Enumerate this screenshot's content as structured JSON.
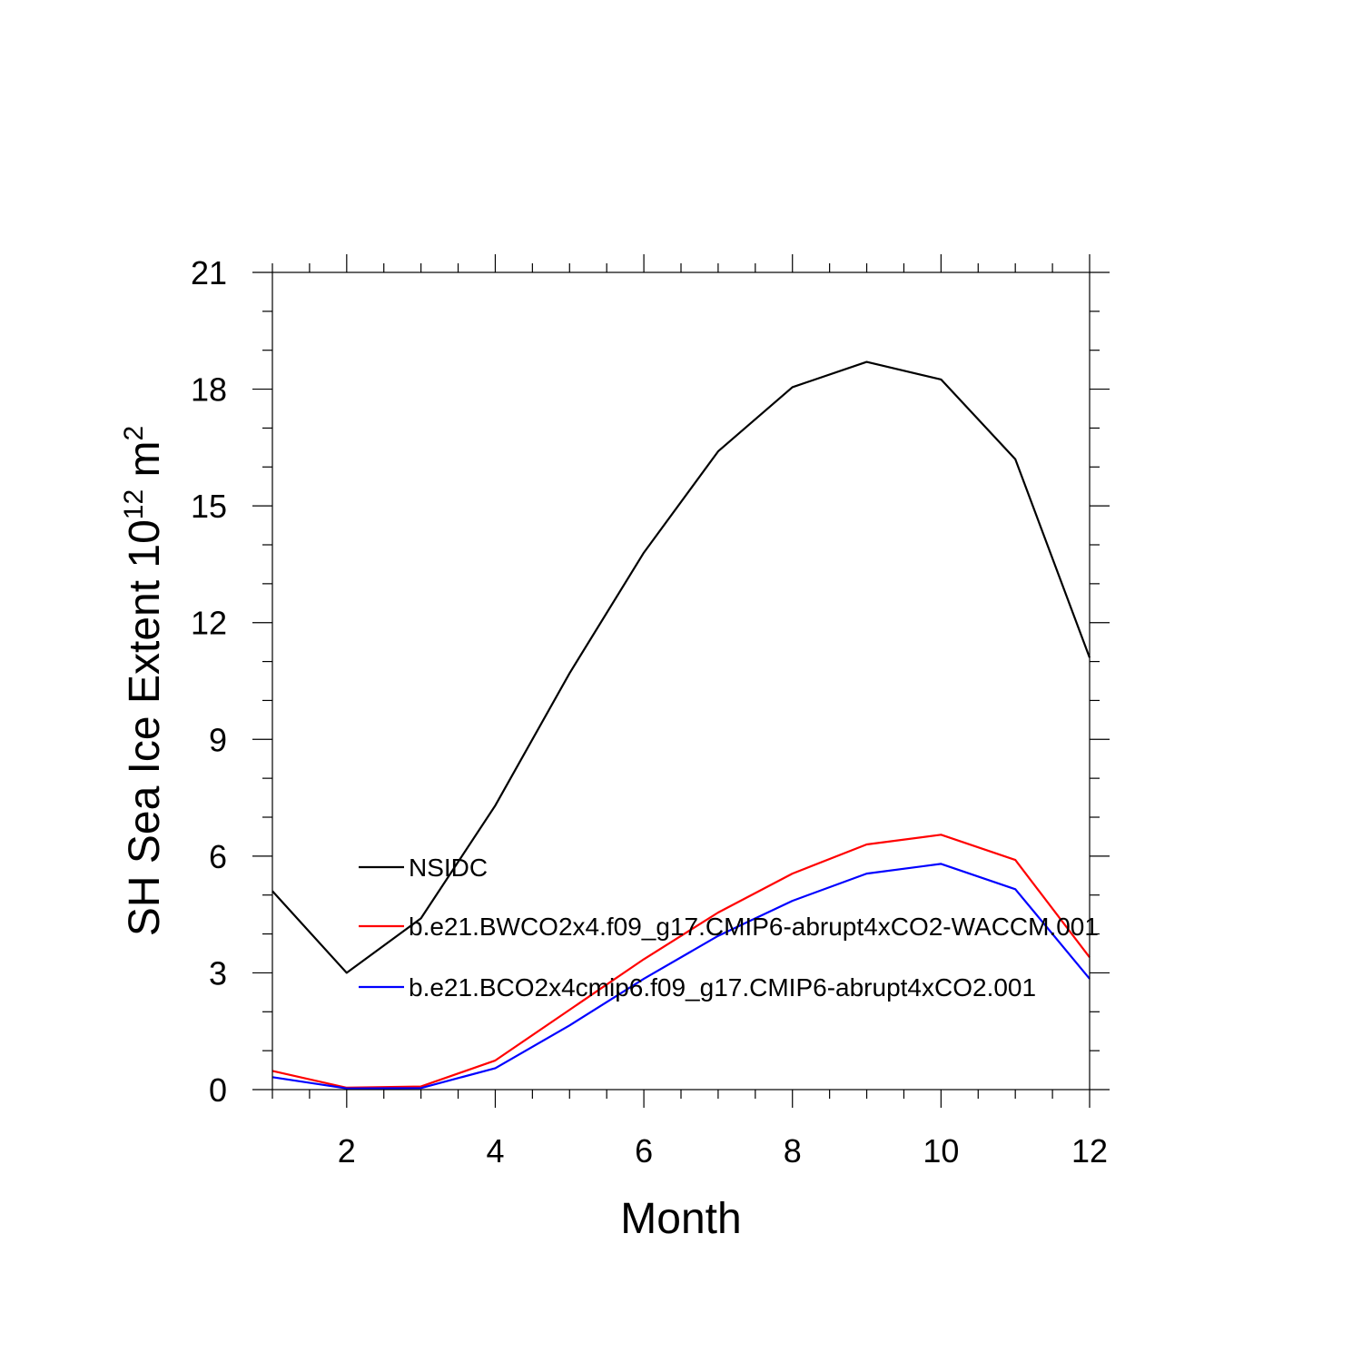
{
  "chart_data": {
    "type": "line",
    "title": "",
    "xlabel": "Month",
    "ylabel": "SH Sea Ice Extent 10",
    "ylabel_exp": "12",
    "ylabel_unit": " m",
    "ylabel_unit_exp": "2",
    "xlim": [
      1,
      12
    ],
    "ylim": [
      0,
      21
    ],
    "x_ticks": [
      2,
      4,
      6,
      8,
      10,
      12
    ],
    "x_tick_labels": [
      "2",
      "4",
      "6",
      "8",
      "10",
      "12"
    ],
    "y_ticks": [
      0,
      3,
      6,
      9,
      12,
      15,
      18,
      21
    ],
    "y_tick_labels": [
      "0",
      "3",
      "6",
      "9",
      "12",
      "15",
      "18",
      "21"
    ],
    "grid": false,
    "legend_position": "center-left",
    "x": [
      1,
      2,
      3,
      4,
      5,
      6,
      7,
      8,
      9,
      10,
      11,
      12
    ],
    "series": [
      {
        "name": "NSIDC",
        "color": "#000000",
        "values": [
          5.1,
          3.0,
          4.4,
          7.3,
          10.7,
          13.8,
          16.4,
          18.05,
          18.7,
          18.25,
          16.2,
          11.1
        ]
      },
      {
        "name": "b.e21.BWCO2x4.f09_g17.CMIP6-abrupt4xCO2-WACCM.001",
        "color": "#ff0000",
        "values": [
          0.48,
          0.05,
          0.08,
          0.75,
          2.05,
          3.35,
          4.55,
          5.55,
          6.3,
          6.55,
          5.9,
          3.4
        ]
      },
      {
        "name": "b.e21.BCO2x4cmip6.f09_g17.CMIP6-abrupt4xCO2.001",
        "color": "#0000ff",
        "values": [
          0.32,
          0.03,
          0.04,
          0.55,
          1.65,
          2.85,
          3.95,
          4.85,
          5.55,
          5.8,
          5.15,
          2.85
        ]
      }
    ]
  }
}
